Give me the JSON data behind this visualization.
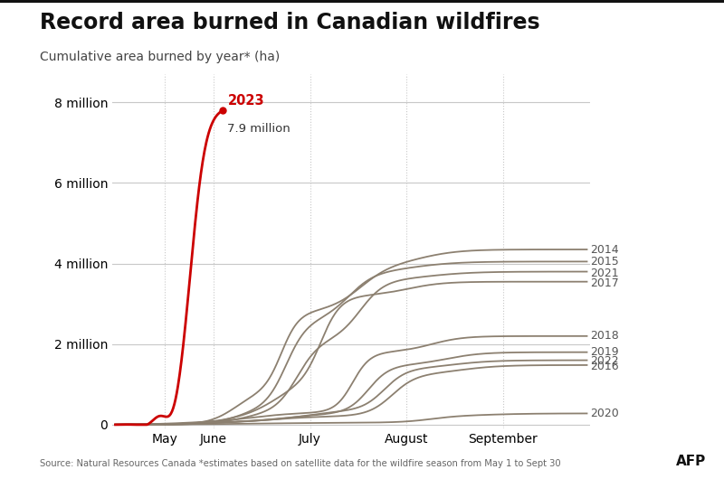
{
  "title": "Record area burned in Canadian wildfires",
  "subtitle": "Cumulative area burned by year* (ha)",
  "source": "Source: Natural Resources Canada *estimates based on satellite data for the wildfire season from May 1 to Sept 30",
  "afp_label": "AFP",
  "background_color": "#ffffff",
  "plot_bg_color": "#ffffff",
  "title_fontsize": 17,
  "subtitle_fontsize": 10,
  "ytick_labels": [
    "0",
    "2 million",
    "4 million",
    "6 million",
    "8 million"
  ],
  "ytick_values": [
    0,
    2000000,
    4000000,
    6000000,
    8000000
  ],
  "xtick_labels": [
    "May",
    "June",
    "July",
    "August",
    "September"
  ],
  "xtick_values": [
    31,
    62,
    123,
    184,
    245
  ],
  "ylim": [
    -100000,
    8700000
  ],
  "xlim": [
    -2,
    300
  ],
  "grid_color": "#c8c8c8",
  "line_2023_color": "#cc0000",
  "line_other_color": "#8c8070",
  "annotation_2023": "2023",
  "annotation_value": "7.9 million",
  "year_label_color": "#555555",
  "year_label_fontsize": 9
}
